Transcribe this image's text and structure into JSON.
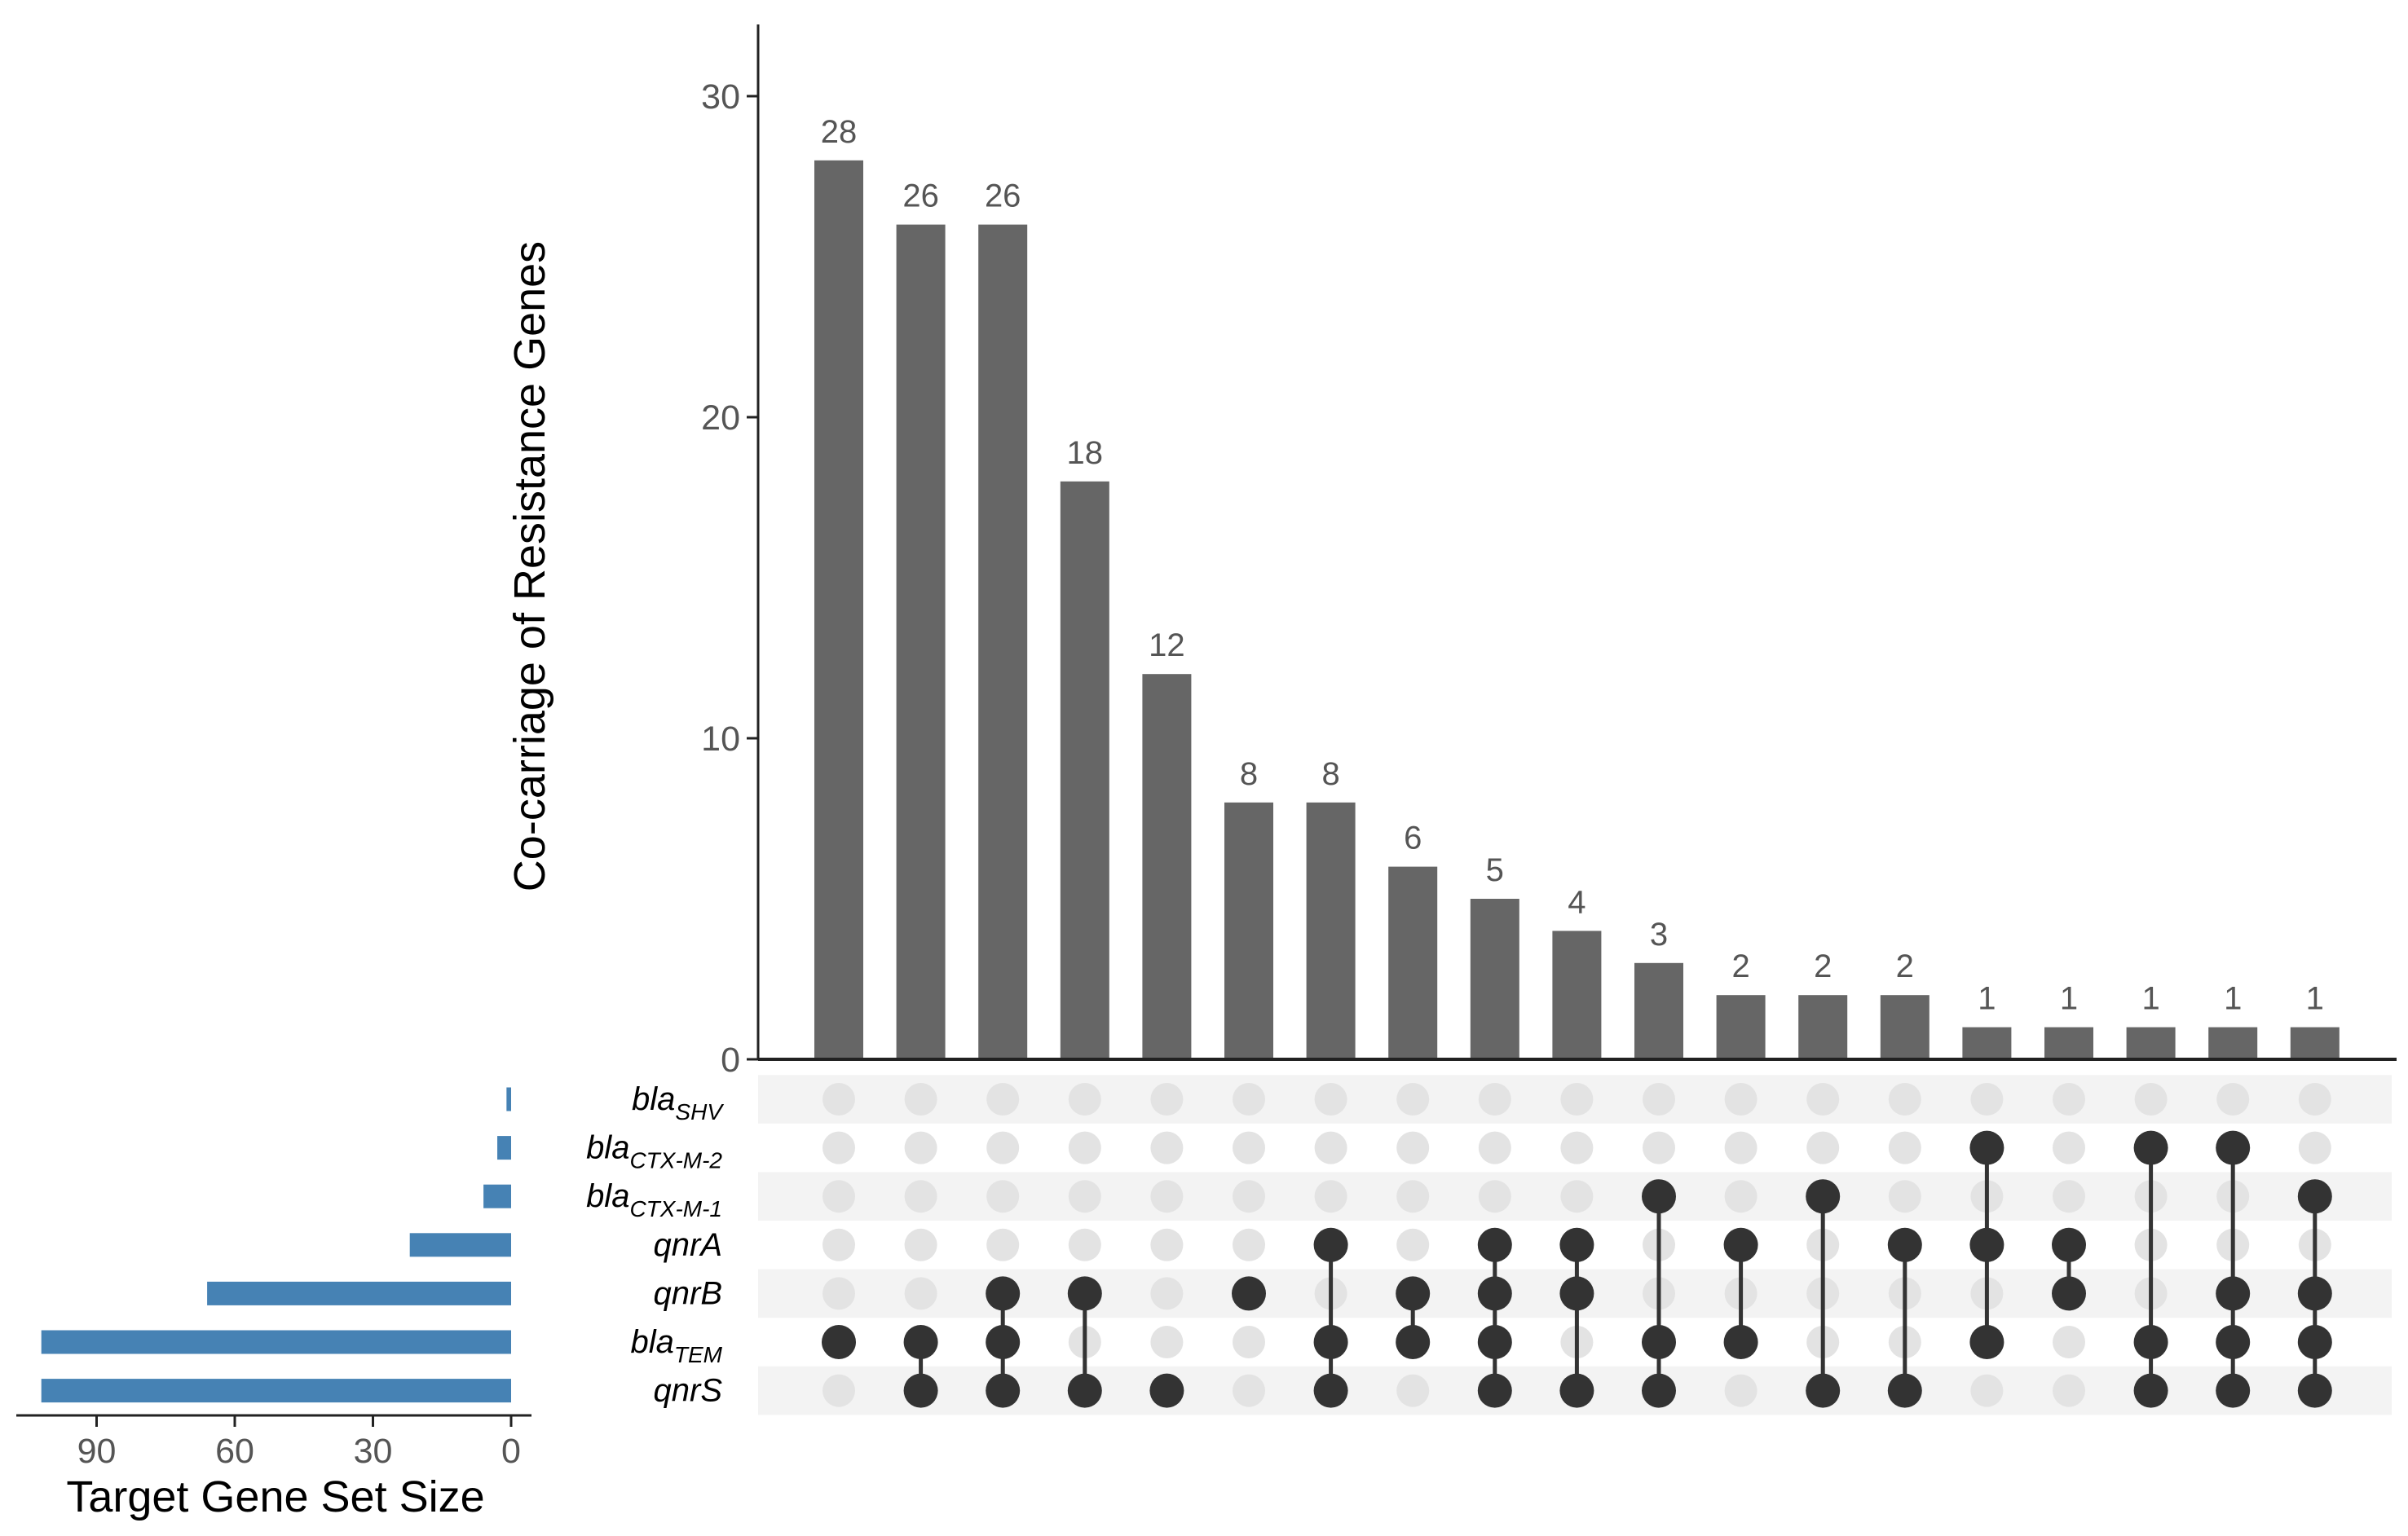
{
  "chart_data": {
    "type": "upset",
    "intersection_axis_title": "Co-carriage of Resistance Genes",
    "set_size_axis_title": "Target Gene Set Size",
    "intersection_ylim": [
      0,
      30
    ],
    "intersection_yticks": [
      "0",
      "10",
      "20",
      "30"
    ],
    "set_size_xlim": [
      0,
      103
    ],
    "set_size_xticks": [
      "90",
      "60",
      "30",
      "0"
    ],
    "sets": [
      {
        "name": "bla",
        "sub": "SHV",
        "size": 1
      },
      {
        "name": "bla",
        "sub": "CTX-M-2",
        "size": 3
      },
      {
        "name": "bla",
        "sub": "CTX-M-1",
        "size": 6
      },
      {
        "name": "qnrA",
        "sub": "",
        "size": 22
      },
      {
        "name": "qnrB",
        "sub": "",
        "size": 66
      },
      {
        "name": "bla",
        "sub": "TEM",
        "size": 102
      },
      {
        "name": "qnrS",
        "sub": "",
        "size": 102
      }
    ],
    "intersections": [
      {
        "value": 28,
        "label": "28",
        "members": [
          5
        ]
      },
      {
        "value": 26,
        "label": "26",
        "members": [
          5,
          6
        ]
      },
      {
        "value": 26,
        "label": "26",
        "members": [
          4,
          5,
          6
        ]
      },
      {
        "value": 18,
        "label": "18",
        "members": [
          4,
          6
        ]
      },
      {
        "value": 12,
        "label": "12",
        "members": [
          6
        ]
      },
      {
        "value": 8,
        "label": "8",
        "members": [
          4
        ]
      },
      {
        "value": 8,
        "label": "8",
        "members": [
          3,
          5,
          6
        ]
      },
      {
        "value": 6,
        "label": "6",
        "members": [
          4,
          5
        ]
      },
      {
        "value": 5,
        "label": "5",
        "members": [
          3,
          4,
          5,
          6
        ]
      },
      {
        "value": 4,
        "label": "4",
        "members": [
          3,
          4,
          6
        ]
      },
      {
        "value": 3,
        "label": "3",
        "members": [
          2,
          5,
          6
        ]
      },
      {
        "value": 2,
        "label": "2",
        "members": [
          3,
          5
        ]
      },
      {
        "value": 2,
        "label": "2",
        "members": [
          2,
          6
        ]
      },
      {
        "value": 2,
        "label": "2",
        "members": [
          3,
          6
        ]
      },
      {
        "value": 1,
        "label": "1",
        "members": [
          1,
          3,
          5
        ]
      },
      {
        "value": 1,
        "label": "1",
        "members": [
          3,
          4
        ]
      },
      {
        "value": 1,
        "label": "1",
        "members": [
          1,
          5,
          6
        ]
      },
      {
        "value": 1,
        "label": "1",
        "members": [
          1,
          4,
          5,
          6
        ]
      },
      {
        "value": 1,
        "label": "1",
        "members": [
          2,
          4,
          5,
          6
        ]
      }
    ],
    "colors": {
      "intersection_bar": "#666666",
      "set_size_bar": "#4682b4",
      "dot_active": "#333333",
      "dot_inactive": "#e3e3e3",
      "stripe": "#f3f3f3",
      "axis": "#222222"
    }
  }
}
